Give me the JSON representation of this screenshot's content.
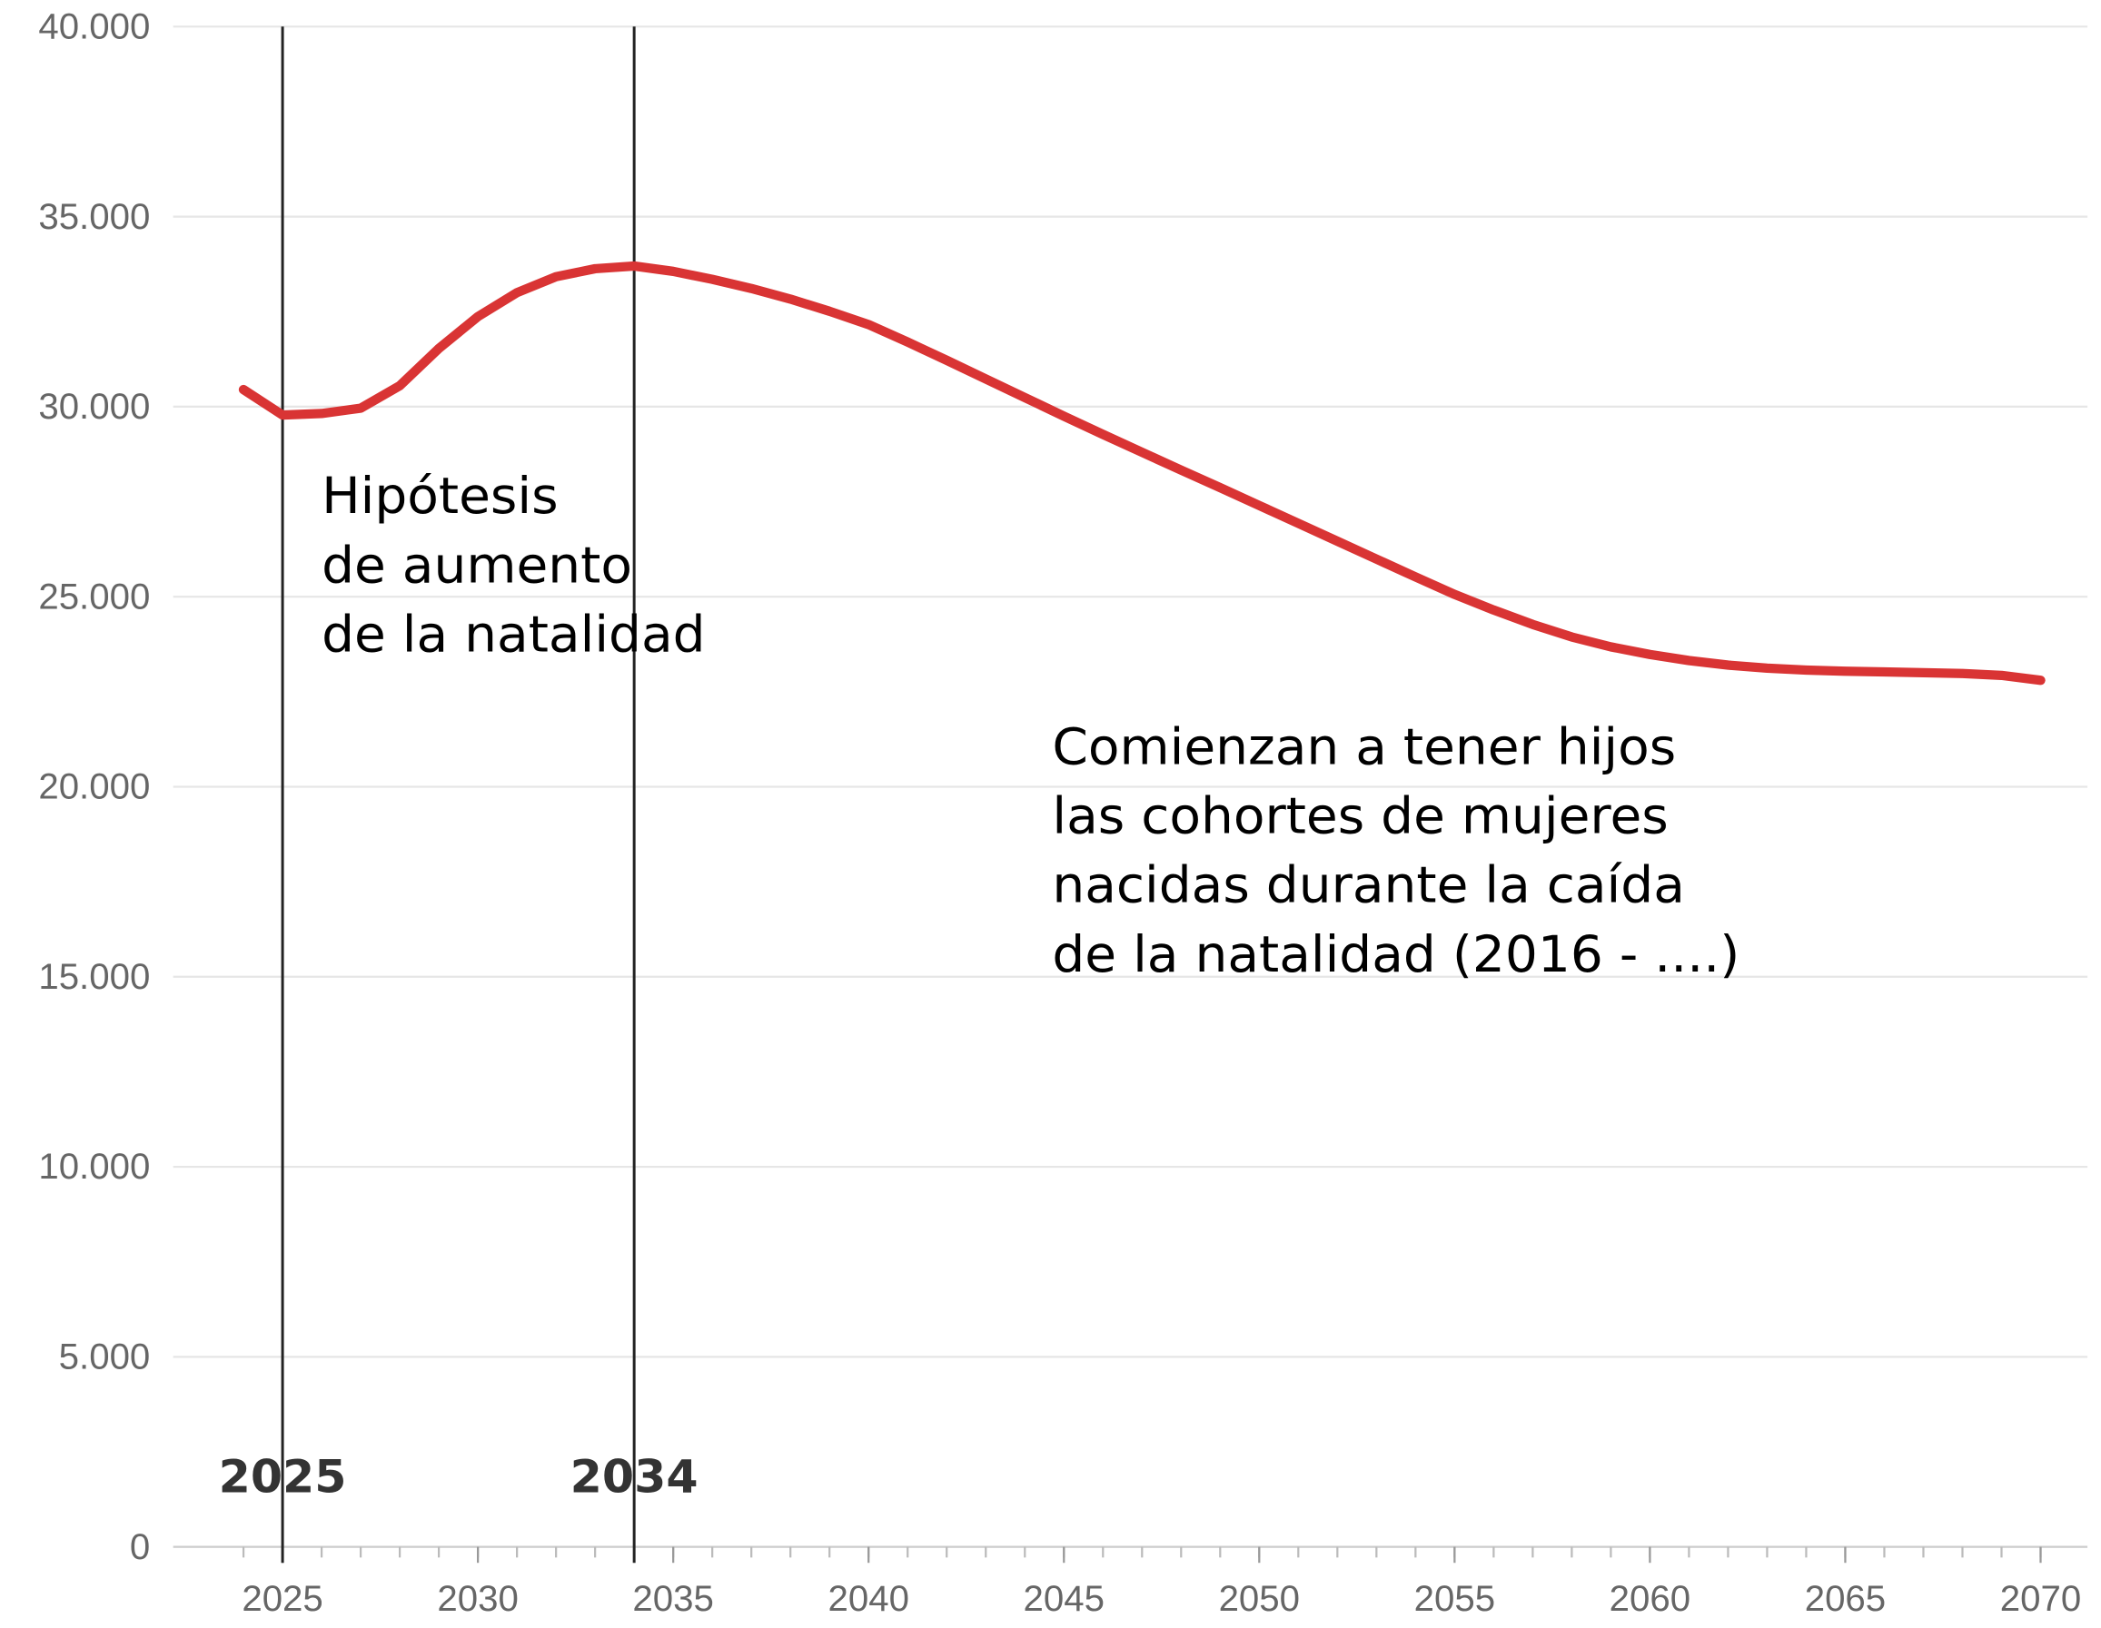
{
  "chart_data": {
    "type": "line",
    "x": [
      2024,
      2025,
      2026,
      2027,
      2028,
      2029,
      2030,
      2031,
      2032,
      2033,
      2034,
      2035,
      2036,
      2037,
      2038,
      2039,
      2040,
      2041,
      2042,
      2043,
      2044,
      2045,
      2046,
      2047,
      2048,
      2049,
      2050,
      2051,
      2052,
      2053,
      2054,
      2055,
      2056,
      2057,
      2058,
      2059,
      2060,
      2061,
      2062,
      2063,
      2064,
      2065,
      2066,
      2067,
      2068,
      2069,
      2070
    ],
    "series": [
      {
        "color": "#d93434",
        "values": [
          30450,
          29780,
          29820,
          29960,
          30550,
          31530,
          32370,
          33000,
          33420,
          33630,
          33700,
          33560,
          33350,
          33110,
          32830,
          32510,
          32160,
          31700,
          31220,
          30730,
          30240,
          29750,
          29270,
          28800,
          28330,
          27870,
          27400,
          26930,
          26460,
          25990,
          25520,
          25060,
          24650,
          24270,
          23940,
          23680,
          23480,
          23320,
          23200,
          23120,
          23070,
          23040,
          23020,
          23000,
          22980,
          22930,
          22800
        ]
      }
    ],
    "xlim": [
      2022.2,
      2071.2
    ],
    "xticks": [
      2025,
      2030,
      2035,
      2040,
      2045,
      2050,
      2055,
      2060,
      2065,
      2070
    ],
    "ylim": [
      0,
      40000
    ],
    "yticks": [
      0,
      {
        "value": 5000,
        "label": "5.000"
      },
      {
        "value": 10000,
        "label": "10.000"
      },
      {
        "value": 15000,
        "label": "15.000"
      },
      {
        "value": 20000,
        "label": "20.000"
      },
      {
        "value": 25000,
        "label": "25.000"
      },
      {
        "value": 30000,
        "label": "30.000"
      },
      {
        "value": 35000,
        "label": "35.000"
      },
      {
        "value": 40000,
        "label": "40.000"
      }
    ],
    "grid": true,
    "vlines": [
      {
        "x": 2025,
        "label": "2025"
      },
      {
        "x": 2034,
        "label": "2034"
      }
    ],
    "annotations": [
      {
        "x": 2026,
        "y": 27200,
        "lines": [
          "Hipótesis",
          "de aumento",
          "de la natalidad"
        ]
      },
      {
        "x": 2044.7,
        "y": 20600,
        "lines": [
          "Comienzan a tener hijos",
          "las cohortes de mujeres",
          "nacidas durante la caída",
          "de la natalidad (2016 - ....)"
        ]
      }
    ]
  }
}
